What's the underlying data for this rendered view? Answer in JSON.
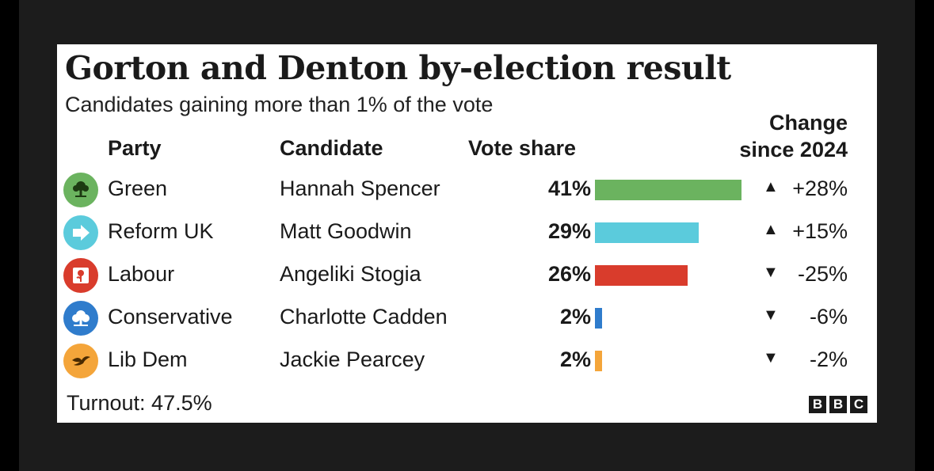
{
  "title": "Gorton and Denton by-election result",
  "subtitle": "Candidates gaining more than 1% of the vote",
  "headers": {
    "party": "Party",
    "candidate": "Candidate",
    "vote_share": "Vote share",
    "change_line1": "Change",
    "change_line2": "since 2024"
  },
  "rows": [
    {
      "party": "Green",
      "candidate": "Hannah Spencer",
      "vote_label": "41%",
      "change_label": "+28%",
      "direction": "up",
      "color": "#6bb35f",
      "icon": "green-party-tree-icon"
    },
    {
      "party": "Reform UK",
      "candidate": "Matt Goodwin",
      "vote_label": "29%",
      "change_label": "+15%",
      "direction": "up",
      "color": "#5bcbdc",
      "icon": "reform-arrow-icon"
    },
    {
      "party": "Labour",
      "candidate": "Angeliki Stogia",
      "vote_label": "26%",
      "change_label": "-25%",
      "direction": "down",
      "color": "#d93c2c",
      "icon": "labour-rose-icon"
    },
    {
      "party": "Conservative",
      "candidate": "Charlotte Cadden",
      "vote_label": "2%",
      "change_label": "-6%",
      "direction": "down",
      "color": "#2f7ccc",
      "icon": "conservative-tree-icon"
    },
    {
      "party": "Lib Dem",
      "candidate": "Jackie Pearcey",
      "vote_label": "2%",
      "change_label": "-2%",
      "direction": "down",
      "color": "#f4a53a",
      "icon": "lib-dem-bird-icon"
    }
  ],
  "chart_data": {
    "type": "bar",
    "title": "Gorton and Denton by-election result",
    "subtitle": "Candidates gaining more than 1% of the vote",
    "categories": [
      "Green",
      "Reform UK",
      "Labour",
      "Conservative",
      "Lib Dem"
    ],
    "values": [
      41,
      29,
      26,
      2,
      2
    ],
    "change_since_2024": [
      28,
      15,
      -25,
      -6,
      -2
    ],
    "ylabel": "Vote share",
    "xlim": [
      0,
      41
    ],
    "orientation": "horizontal",
    "grid": false
  },
  "turnout": "Turnout: 47.5%",
  "logo": {
    "letters": [
      "B",
      "B",
      "C"
    ]
  }
}
